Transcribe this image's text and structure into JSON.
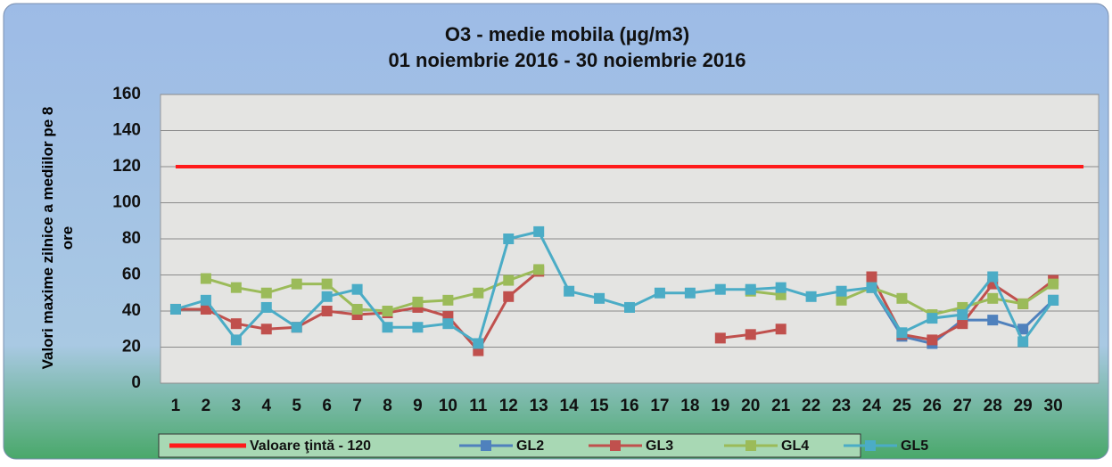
{
  "chart_data": {
    "type": "line",
    "title": "O3 - medie mobila (µg/m3)",
    "subtitle": "01 noiembrie 2016 - 30 noiembrie 2016",
    "y_label": "Valori maxime zilnice a mediilor pe 8 ore",
    "categories": [
      "1",
      "2",
      "3",
      "4",
      "5",
      "6",
      "7",
      "8",
      "9",
      "10",
      "11",
      "12",
      "13",
      "14",
      "15",
      "16",
      "17",
      "18",
      "19",
      "20",
      "21",
      "22",
      "23",
      "24",
      "25",
      "26",
      "27",
      "28",
      "29",
      "30",
      null
    ],
    "ylim": [
      0,
      160
    ],
    "yticks": [
      0,
      20,
      40,
      60,
      80,
      100,
      120,
      140,
      160
    ],
    "grid": true,
    "legend": "bottom",
    "series": [
      {
        "name": "Valoare ţintă - 120",
        "color": "#ff1a1a",
        "values": [
          120,
          120,
          120,
          120,
          120,
          120,
          120,
          120,
          120,
          120,
          120,
          120,
          120,
          120,
          120,
          120,
          120,
          120,
          120,
          120,
          120,
          120,
          120,
          120,
          120,
          120,
          120,
          120,
          120,
          120,
          120
        ]
      },
      {
        "name": "GL2",
        "color": "#4f81bd",
        "values": [
          null,
          null,
          null,
          null,
          null,
          null,
          null,
          null,
          null,
          null,
          null,
          null,
          null,
          null,
          null,
          null,
          null,
          null,
          null,
          null,
          null,
          null,
          null,
          53,
          26,
          22,
          35,
          35,
          30,
          46,
          null
        ]
      },
      {
        "name": "GL3",
        "color": "#c0504d",
        "values": [
          41,
          41,
          33,
          30,
          31,
          40,
          38,
          39,
          42,
          37,
          18,
          48,
          62,
          null,
          null,
          null,
          null,
          null,
          25,
          27,
          30,
          null,
          null,
          59,
          27,
          24,
          33,
          55,
          44,
          57,
          null
        ]
      },
      {
        "name": "GL4",
        "color": "#9bbb59",
        "values": [
          null,
          58,
          53,
          50,
          55,
          55,
          41,
          40,
          45,
          46,
          50,
          57,
          63,
          null,
          null,
          null,
          null,
          null,
          null,
          51,
          49,
          null,
          46,
          53,
          47,
          38,
          42,
          47,
          44,
          55,
          null
        ]
      },
      {
        "name": "GL5",
        "color": "#4bacc6",
        "values": [
          41,
          46,
          24,
          42,
          31,
          48,
          52,
          31,
          31,
          33,
          22,
          80,
          84,
          51,
          47,
          42,
          50,
          50,
          52,
          52,
          53,
          48,
          51,
          53,
          28,
          36,
          38,
          59,
          23,
          46,
          null
        ]
      }
    ]
  }
}
